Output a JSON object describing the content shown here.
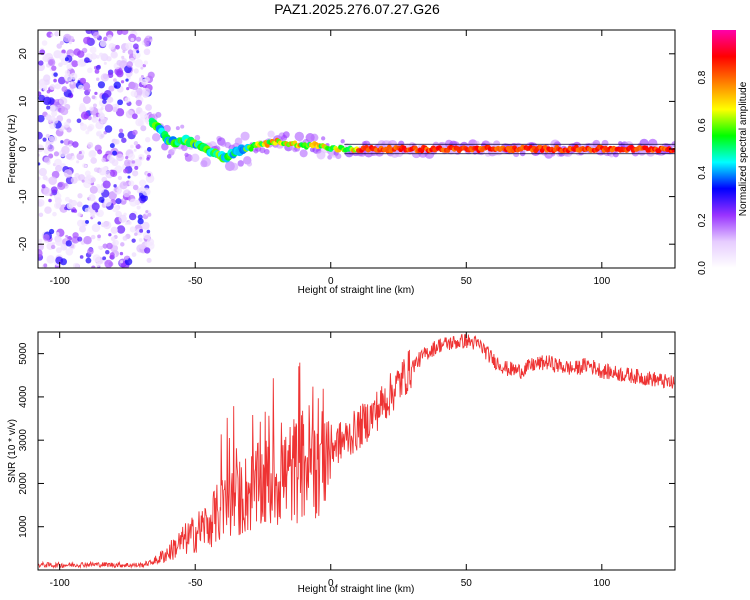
{
  "title": "PAZ1.2025.276.07.27.G26",
  "chart_data": [
    {
      "type": "heatmap",
      "title": "",
      "xlabel": "Height of straight line (km)",
      "ylabel": "Frequency (Hz)",
      "xlim": [
        -108,
        127
      ],
      "ylim": [
        -25,
        25
      ],
      "xticks": [
        -100,
        -50,
        0,
        50,
        100
      ],
      "yticks": [
        -20,
        -10,
        0,
        10,
        20
      ],
      "colorbar": {
        "label": "Normalized spectral amplitude",
        "range": [
          0.0,
          1.0
        ],
        "ticks": [
          0.0,
          0.2,
          0.4,
          0.6,
          0.8
        ],
        "tick_labels": [
          "0.0",
          "0.2",
          "0.4",
          "0.6",
          "0.8"
        ],
        "colormap": [
          "#ffffff",
          "#e6ccff",
          "#9933ff",
          "#0000ff",
          "#00ffff",
          "#00ff00",
          "#ffff00",
          "#ff8000",
          "#ff0000",
          "#ff00aa"
        ]
      },
      "ridge": {
        "x": [
          -66,
          -63,
          -60,
          -57,
          -54,
          -50,
          -46,
          -42,
          -39,
          -36,
          -33,
          -30,
          -27,
          -24,
          -21,
          -18,
          -15,
          -12,
          -9,
          -6,
          -3,
          0,
          5,
          10,
          20,
          30,
          40,
          50,
          60,
          70,
          80,
          90,
          100,
          110,
          120,
          127
        ],
        "y": [
          6,
          4,
          2,
          1,
          2,
          1,
          0,
          -1,
          -2,
          -1,
          0,
          0,
          1,
          1,
          1.5,
          1.5,
          1,
          1,
          0.5,
          1,
          0.5,
          0,
          0,
          0,
          0,
          0,
          0,
          0,
          0,
          0,
          0,
          0,
          0,
          0,
          0,
          0
        ]
      },
      "noise_region_x": [
        -108,
        -66
      ]
    },
    {
      "type": "line",
      "title": "",
      "xlabel": "Height of straight line (km)",
      "ylabel": "SNR (10 * v/v)",
      "xlim": [
        -108,
        127
      ],
      "ylim": [
        0,
        5500
      ],
      "xticks": [
        -100,
        -50,
        0,
        50,
        100
      ],
      "yticks": [
        1000,
        2000,
        3000,
        4000,
        5000
      ],
      "color": "#ee3333",
      "series": [
        {
          "name": "SNR",
          "x": [
            -108,
            -100,
            -90,
            -80,
            -70,
            -65,
            -60,
            -55,
            -50,
            -45,
            -40,
            -35,
            -30,
            -25,
            -20,
            -15,
            -10,
            -5,
            0,
            5,
            10,
            15,
            20,
            25,
            30,
            35,
            40,
            45,
            50,
            55,
            60,
            65,
            70,
            75,
            80,
            85,
            90,
            95,
            100,
            105,
            110,
            115,
            120,
            127
          ],
          "values": [
            120,
            110,
            130,
            120,
            110,
            200,
            400,
            650,
            850,
            1100,
            1400,
            1600,
            1800,
            1950,
            2100,
            2250,
            2450,
            2650,
            2850,
            3000,
            3250,
            3550,
            3900,
            4300,
            4700,
            5000,
            5200,
            5250,
            5300,
            5200,
            4850,
            4650,
            4600,
            4750,
            4800,
            4700,
            4650,
            4750,
            4600,
            4550,
            4500,
            4450,
            4400,
            4300
          ]
        }
      ]
    }
  ]
}
